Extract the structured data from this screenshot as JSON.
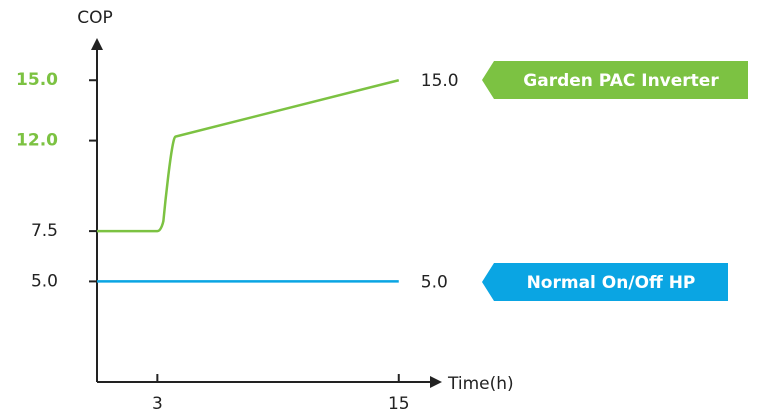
{
  "chart_data": {
    "type": "line",
    "xlabel": "Time(h)",
    "ylabel": "COP",
    "xlim": [
      0,
      17
    ],
    "xticks": [
      3,
      15
    ],
    "ylim": [
      0,
      17
    ],
    "yticks": [
      {
        "value": 5,
        "label": "5.0",
        "color": "#222222"
      },
      {
        "value": 7.5,
        "label": "7.5",
        "color": "#222222"
      },
      {
        "value": 12,
        "label": "12.0",
        "color": "#7cc242"
      },
      {
        "value": 15,
        "label": "15.0",
        "color": "#7cc242"
      }
    ],
    "series": [
      {
        "name": "Garden PAC Inverter",
        "color": "#7cc242",
        "x": [
          0,
          3,
          3.3,
          3.9,
          15
        ],
        "values": [
          7.5,
          7.5,
          8,
          12.2,
          15
        ],
        "value_labels": [
          null,
          null,
          null,
          null,
          "15.0"
        ]
      },
      {
        "name": "Normal On/Off HP",
        "color": "#0aa5e3",
        "x": [
          0,
          15
        ],
        "values": [
          5,
          5
        ],
        "value_labels": [
          null,
          "5.0"
        ]
      }
    ]
  }
}
